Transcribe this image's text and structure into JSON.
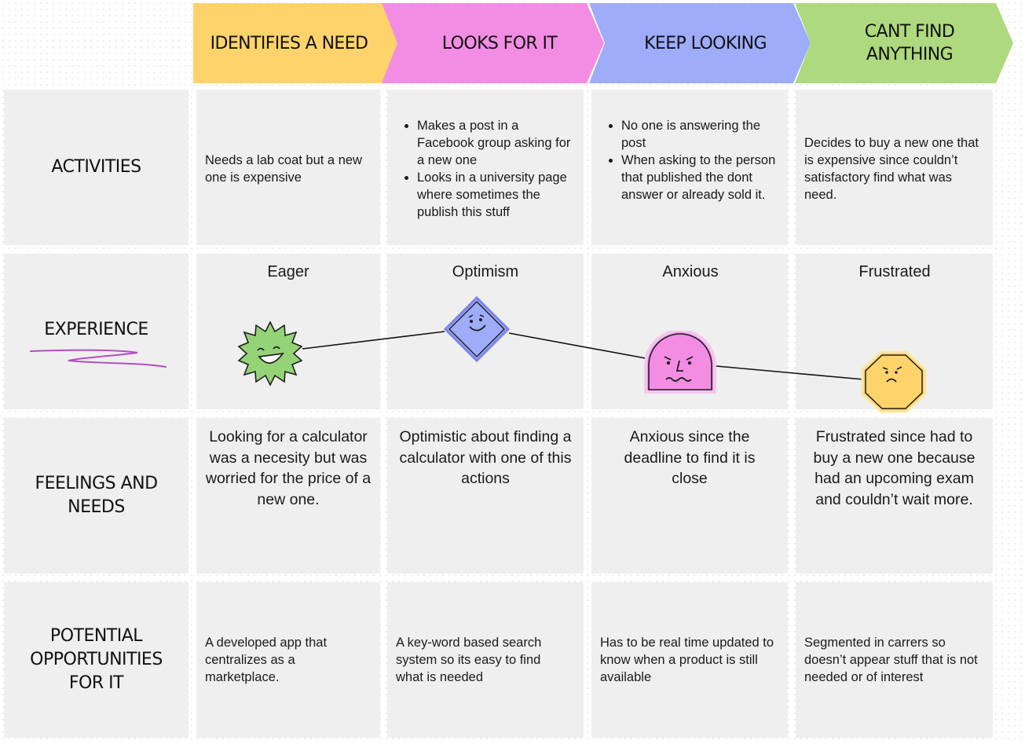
{
  "stages": [
    {
      "label": "IDENTIFIES A NEED",
      "color": "#ffd36b"
    },
    {
      "label": "LOOKS FOR IT",
      "color": "#f38de4"
    },
    {
      "label": "KEEP LOOKING",
      "color": "#9eacfa"
    },
    {
      "label": "CANT FIND\nANYTHING",
      "color": "#aed97e"
    }
  ],
  "rows": {
    "activities": "ACTIVITIES",
    "experience": "EXPERIENCE",
    "feelings": "FEELINGS AND\nNEEDS",
    "opportunities": "POTENTIAL\nOPPORTUNITIES\nFOR IT"
  },
  "activities": {
    "identifies": "Needs a lab coat but a new one is expensive",
    "looks": [
      "Makes a post in a Facebook group asking for a new one",
      "Looks in a university page where sometimes the publish this stuff"
    ],
    "keep": [
      "No one is answering the post",
      "When asking to the person that published the dont answer or already sold it."
    ],
    "cant": "Decides to buy a new one that is expensive since couldn’t satisfactory find what was need."
  },
  "emotions": [
    "Eager",
    "Optimism",
    "Anxious",
    "Frustrated"
  ],
  "emotion_icons": [
    "smiling-sun-face-icon",
    "happy-diamond-face-icon",
    "anxious-arch-face-icon",
    "frustrated-octagon-face-icon"
  ],
  "feelings": [
    "Looking for a calculator was a necesity but was worried for the price of a new one.",
    "Optimistic about finding a calculator with one of this actions",
    "Anxious since the deadline to find it is close",
    "Frustrated since had to buy a new one because had an upcoming exam and couldn’t wait more."
  ],
  "opportunities": [
    "A developed app that centralizes as a marketplace.",
    "A key-word based search system so its easy to find what is needed",
    "Has to be real time updated to know when a product is still available",
    "Segmented in carrers so doesn’t appear stuff that is not needed or of interest"
  ]
}
